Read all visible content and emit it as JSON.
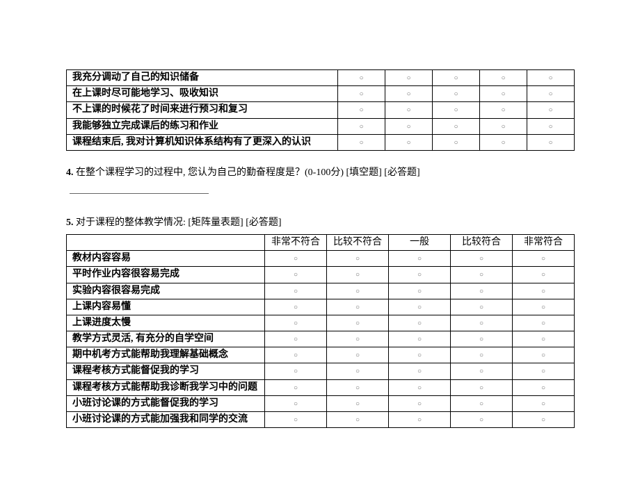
{
  "table1": {
    "rows": [
      "我充分调动了自己的知识储备",
      "在上课时尽可能地学习、吸收知识",
      "不上课的时候花了时间来进行预习和复习",
      "我能够独立完成课后的练习和作业",
      "课程结束后, 我对计算机知识体系结构有了更深入的认识"
    ],
    "radio_cols": 5
  },
  "question4": {
    "num": "4.",
    "text": " 在整个课程学习的过程中, 您认为自己的勤奋程度是？(0-100分) [填空题] [必答题]"
  },
  "question5": {
    "num": "5.",
    "text": " 对于课程的整体教学情况: [矩阵量表题] [必答题]"
  },
  "table2": {
    "headers": [
      "非常不符合",
      "比较不符合",
      "一般",
      "比较符合",
      "非常符合"
    ],
    "rows": [
      "教材内容容易",
      "平时作业内容很容易完成",
      "实验内容很容易完成",
      "上课内容易懂",
      "上课进度太慢",
      "教学方式灵活, 有充分的自学空间",
      "期中机考方式能帮助我理解基础概念",
      "课程考核方式能督促我的学习",
      "课程考核方式能帮助我诊断我学习中的问题",
      "小班讨论课的方式能督促我的学习",
      "小班讨论课的方式能加强我和同学的交流"
    ]
  },
  "radio_mark": "○",
  "colors": {
    "text": "#000000",
    "border": "#000000",
    "bg": "#ffffff"
  }
}
